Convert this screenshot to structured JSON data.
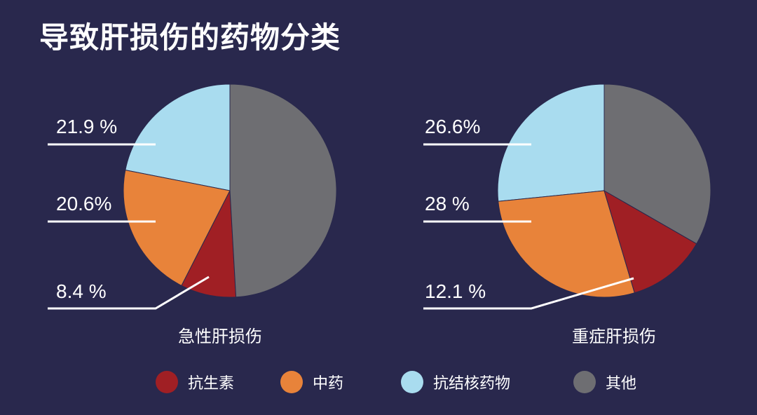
{
  "title": "导致肝损伤的药物分类",
  "colors": {
    "background": "#29284d",
    "antibiotics": "#a01f24",
    "tcm": "#e8833a",
    "anti_tb": "#a9dcef",
    "other": "#6e6e72",
    "text": "#ffffff"
  },
  "chart_data": [
    {
      "type": "pie",
      "title": "急性肝损伤",
      "series": [
        {
          "name": "抗生素",
          "value": 8.4,
          "label": "8.4 %",
          "color": "#a01f24",
          "labeled": true
        },
        {
          "name": "中药",
          "value": 20.6,
          "label": "20.6%",
          "color": "#e8833a",
          "labeled": true
        },
        {
          "name": "抗结核药物",
          "value": 21.9,
          "label": "21.9 %",
          "color": "#a9dcef",
          "labeled": true
        },
        {
          "name": "其他",
          "value": 49.1,
          "label": "",
          "color": "#6e6e72",
          "labeled": false
        }
      ]
    },
    {
      "type": "pie",
      "title": "重症肝损伤",
      "series": [
        {
          "name": "抗生素",
          "value": 12.1,
          "label": "12.1 %",
          "color": "#a01f24",
          "labeled": true
        },
        {
          "name": "中药",
          "value": 28,
          "label": "28 %",
          "color": "#e8833a",
          "labeled": true
        },
        {
          "name": "抗结核药物",
          "value": 26.6,
          "label": "26.6%",
          "color": "#a9dcef",
          "labeled": true
        },
        {
          "name": "其他",
          "value": 33.3,
          "label": "",
          "color": "#6e6e72",
          "labeled": false
        }
      ]
    }
  ],
  "legend": [
    {
      "label": "抗生素",
      "color": "#a01f24"
    },
    {
      "label": "中药",
      "color": "#e8833a"
    },
    {
      "label": "抗结核药物",
      "color": "#a9dcef"
    },
    {
      "label": "其他",
      "color": "#6e6e72"
    }
  ]
}
